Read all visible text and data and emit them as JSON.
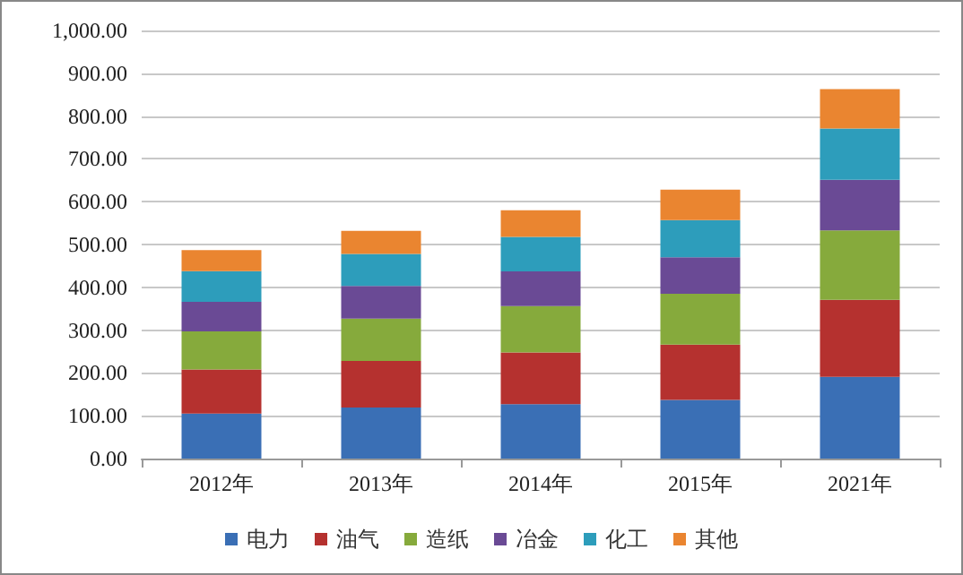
{
  "chart_data": {
    "type": "bar",
    "stacked": true,
    "categories": [
      "2012年",
      "2013年",
      "2014年",
      "2015年",
      "2021年"
    ],
    "series": [
      {
        "name": "电力",
        "color": "#3a6fb5",
        "values": [
          105,
          119,
          127,
          137,
          191
        ]
      },
      {
        "name": "油气",
        "color": "#b5312f",
        "values": [
          103,
          109,
          121,
          129,
          180
        ]
      },
      {
        "name": "造纸",
        "color": "#86aa3c",
        "values": [
          89,
          99,
          108,
          119,
          162
        ]
      },
      {
        "name": "冶金",
        "color": "#6a4a95",
        "values": [
          69,
          76,
          81,
          85,
          118
        ]
      },
      {
        "name": "化工",
        "color": "#2d9dbb",
        "values": [
          72,
          75,
          81,
          87,
          120
        ]
      },
      {
        "name": "其他",
        "color": "#ea8530",
        "values": [
          49,
          54,
          62,
          71,
          92
        ]
      }
    ],
    "ylim": [
      0,
      1000
    ],
    "yticks": [
      {
        "value": 0,
        "label": "0.00"
      },
      {
        "value": 100,
        "label": "100.00"
      },
      {
        "value": 200,
        "label": "200.00"
      },
      {
        "value": 300,
        "label": "300.00"
      },
      {
        "value": 400,
        "label": "400.00"
      },
      {
        "value": 500,
        "label": "500.00"
      },
      {
        "value": 600,
        "label": "600.00"
      },
      {
        "value": 700,
        "label": "700.00"
      },
      {
        "value": 800,
        "label": "800.00"
      },
      {
        "value": 900,
        "label": "900.00"
      },
      {
        "value": 1000,
        "label": "1,000.00"
      }
    ],
    "grid": "y",
    "legend": "bottom"
  }
}
